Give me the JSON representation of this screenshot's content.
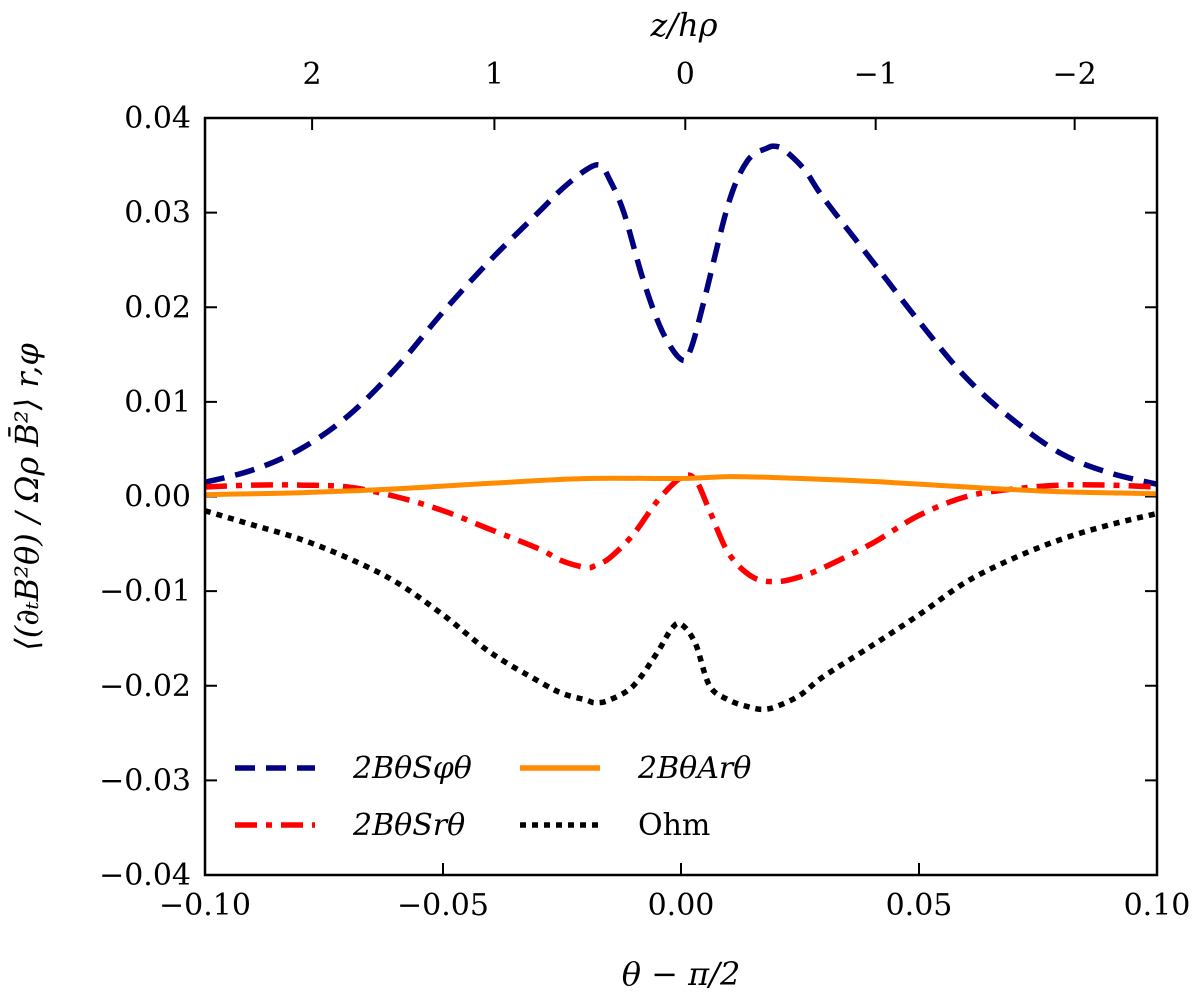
{
  "chart_data": {
    "type": "line",
    "xlabel": "θ − π/2",
    "ylabel": "⟨(∂ₜB²θ) / Ωρ B̄²⟩ r,φ",
    "top_xlabel": "z/hρ",
    "xlim": [
      -0.1,
      0.1
    ],
    "ylim": [
      -0.04,
      0.04
    ],
    "xticks": [
      -0.1,
      -0.05,
      0.0,
      0.05,
      0.1
    ],
    "xtick_labels": [
      "−0.10",
      "−0.05",
      "0.00",
      "0.05",
      "0.10"
    ],
    "yticks": [
      -0.04,
      -0.03,
      -0.02,
      -0.01,
      0.0,
      0.01,
      0.02,
      0.03,
      0.04
    ],
    "ytick_labels": [
      "−0.04",
      "−0.03",
      "−0.02",
      "−0.01",
      "0.00",
      "0.01",
      "0.02",
      "0.03",
      "0.04"
    ],
    "top_ticks_at_x": [
      -0.0775,
      -0.0392,
      0.0009,
      0.0409,
      0.0827
    ],
    "top_tick_labels": [
      "2",
      "1",
      "0",
      "−1",
      "−2"
    ],
    "legend_position": "lower-left",
    "series": [
      {
        "name": "2BθSφθ",
        "color": "#000080",
        "style": "dashed",
        "x": [
          -0.1,
          -0.09,
          -0.08,
          -0.07,
          -0.06,
          -0.05,
          -0.04,
          -0.03,
          -0.025,
          -0.02,
          -0.017,
          -0.015,
          -0.012,
          -0.008,
          -0.004,
          0.0,
          0.002,
          0.005,
          0.01,
          0.014,
          0.018,
          0.02,
          0.022,
          0.026,
          0.03,
          0.04,
          0.05,
          0.06,
          0.07,
          0.08,
          0.09,
          0.1
        ],
        "y": [
          0.0015,
          0.0028,
          0.005,
          0.0085,
          0.0135,
          0.0195,
          0.025,
          0.03,
          0.0325,
          0.0345,
          0.035,
          0.0335,
          0.03,
          0.023,
          0.0175,
          0.0145,
          0.0155,
          0.021,
          0.031,
          0.0355,
          0.0368,
          0.037,
          0.0365,
          0.0345,
          0.0315,
          0.025,
          0.0185,
          0.0125,
          0.008,
          0.0045,
          0.0025,
          0.0013
        ]
      },
      {
        "name": "2BθSrθ",
        "color": "#ff0000",
        "style": "dashdot",
        "x": [
          -0.1,
          -0.09,
          -0.08,
          -0.07,
          -0.06,
          -0.05,
          -0.04,
          -0.03,
          -0.025,
          -0.02,
          -0.018,
          -0.015,
          -0.01,
          -0.005,
          0.0,
          0.003,
          0.006,
          0.01,
          0.015,
          0.02,
          0.025,
          0.03,
          0.04,
          0.05,
          0.06,
          0.07,
          0.08,
          0.09,
          0.1
        ],
        "y": [
          0.001,
          0.0012,
          0.0012,
          0.001,
          0.0,
          -0.0015,
          -0.0035,
          -0.0055,
          -0.0068,
          -0.0075,
          -0.0073,
          -0.0065,
          -0.004,
          -0.0005,
          0.002,
          0.0018,
          -0.0015,
          -0.006,
          -0.0085,
          -0.009,
          -0.0085,
          -0.0075,
          -0.005,
          -0.002,
          0.0,
          0.0008,
          0.0012,
          0.0012,
          0.001
        ]
      },
      {
        "name": "2BθArθ",
        "color": "#ff8c00",
        "style": "solid",
        "x": [
          -0.1,
          -0.08,
          -0.06,
          -0.04,
          -0.02,
          0.0,
          0.01,
          0.02,
          0.04,
          0.06,
          0.08,
          0.1
        ],
        "y": [
          0.0002,
          0.0004,
          0.0008,
          0.0014,
          0.0019,
          0.0019,
          0.0021,
          0.002,
          0.0016,
          0.001,
          0.0005,
          0.0003
        ]
      },
      {
        "name": "Ohm",
        "color": "#000000",
        "style": "dotted",
        "x": [
          -0.1,
          -0.09,
          -0.08,
          -0.07,
          -0.06,
          -0.05,
          -0.04,
          -0.03,
          -0.025,
          -0.02,
          -0.018,
          -0.015,
          -0.01,
          -0.005,
          -0.002,
          0.0,
          0.003,
          0.006,
          0.01,
          0.014,
          0.017,
          0.02,
          0.025,
          0.03,
          0.04,
          0.05,
          0.06,
          0.07,
          0.08,
          0.09,
          0.1
        ],
        "y": [
          -0.0015,
          -0.003,
          -0.0045,
          -0.0065,
          -0.009,
          -0.0125,
          -0.0165,
          -0.0195,
          -0.0208,
          -0.0215,
          -0.0218,
          -0.0215,
          -0.02,
          -0.0165,
          -0.014,
          -0.0135,
          -0.0155,
          -0.02,
          -0.0215,
          -0.0222,
          -0.0225,
          -0.0222,
          -0.021,
          -0.019,
          -0.0158,
          -0.0125,
          -0.009,
          -0.0065,
          -0.0045,
          -0.003,
          -0.0018
        ]
      }
    ]
  }
}
